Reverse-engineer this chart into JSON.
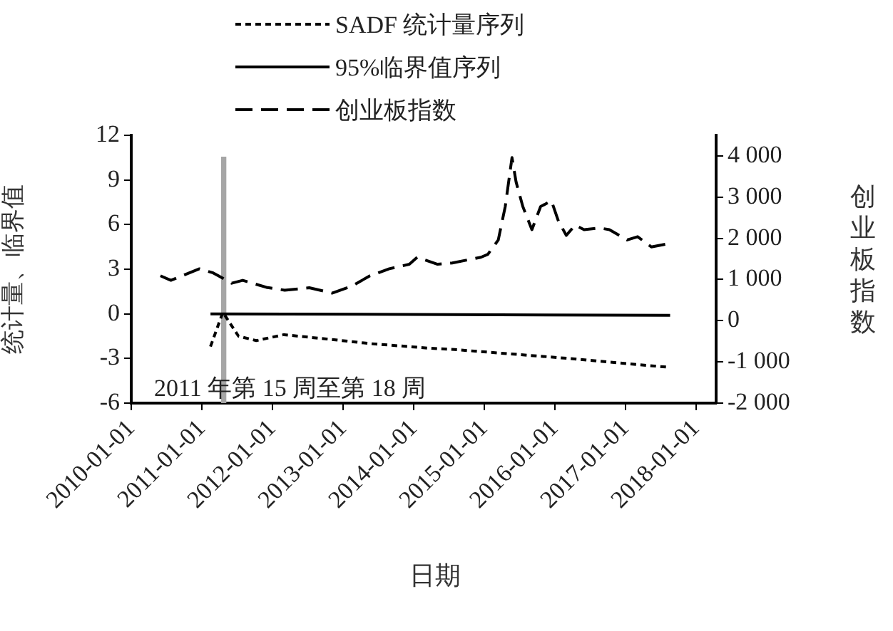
{
  "chart_data": {
    "type": "line",
    "xlabel": "日期",
    "ylabel": "统计量、临界值",
    "y2label": "创业板指数",
    "xlim": [
      "2010-01-01",
      "2018-04-15"
    ],
    "xticks": [
      "2010-01-01",
      "2011-01-01",
      "2012-01-01",
      "2013-01-01",
      "2014-01-01",
      "2015-01-01",
      "2016-01-01",
      "2017-01-01",
      "2018-01-01"
    ],
    "ylim": [
      -6,
      12
    ],
    "yticks": [
      -6,
      -3,
      0,
      3,
      6,
      9,
      12
    ],
    "y2lim": [
      -2000,
      4500
    ],
    "y2ticks": [
      {
        "value": -2000,
        "label": "-2 000"
      },
      {
        "value": -1000,
        "label": "-1 000"
      },
      0,
      {
        "value": 1000,
        "label": "1 000"
      },
      {
        "value": 2000,
        "label": "2 000"
      },
      {
        "value": 3000,
        "label": "3 000"
      },
      {
        "value": 4000,
        "label": "4 000"
      }
    ],
    "grid": false,
    "legend": "top",
    "marker": "none",
    "series": [
      {
        "name": "SADF 统计量序列",
        "color": "#000000",
        "line_style": "dotted",
        "x": [
          "2011-02-15",
          "2011-04-20",
          "2011-07-10",
          "2011-10-10",
          "2012-03-01",
          "2012-10-15",
          "2013-05-20",
          "2014-03-15",
          "2014-08-01",
          "2016-03-15",
          "2017-08-20"
        ],
        "values": [
          -2.2,
          0.1,
          -1.5,
          -1.8,
          -1.4,
          -1.7,
          -2.0,
          -2.3,
          -2.4,
          -3.0,
          -3.6
        ]
      },
      {
        "name": "95%临界值序列",
        "color": "#000000",
        "line_style": "solid",
        "x": [
          "2011-02-15",
          "2017-08-20"
        ],
        "values": [
          0,
          -0.1
        ]
      },
      {
        "name": "创业板指数",
        "color": "#000000",
        "line_style": "dashed",
        "axis": "y2",
        "x": [
          "2010-06-01",
          "2010-07-25",
          "2010-12-20",
          "2011-03-01",
          "2011-06-05",
          "2011-08-01",
          "2011-12-01",
          "2012-03-05",
          "2012-07-10",
          "2012-11-05",
          "2013-02-15",
          "2013-05-20",
          "2013-08-28",
          "2013-12-10",
          "2014-01-20",
          "2014-05-05",
          "2014-07-20",
          "2014-12-15",
          "2015-01-20",
          "2015-03-15",
          "2015-04-20",
          "2015-05-25",
          "2015-06-15",
          "2015-07-20",
          "2015-09-05",
          "2015-10-20",
          "2015-12-15",
          "2016-01-20",
          "2016-03-01",
          "2016-04-15",
          "2016-06-01",
          "2016-08-20",
          "2016-10-10",
          "2017-01-10",
          "2017-03-05",
          "2017-05-15",
          "2017-07-30"
        ],
        "values": [
          1090,
          980,
          1260,
          1160,
          910,
          980,
          810,
          740,
          800,
          670,
          840,
          1090,
          1260,
          1370,
          1540,
          1370,
          1400,
          1540,
          1610,
          1960,
          2770,
          3960,
          3370,
          2770,
          2210,
          2770,
          2910,
          2420,
          2070,
          2320,
          2210,
          2250,
          2210,
          1960,
          2040,
          1790,
          1860
        ]
      }
    ],
    "bands": [
      {
        "axis": "x",
        "from": "2011-04-11",
        "to": "2011-05-08",
        "label": "2011 年第 15 周至第 18 周",
        "color": "#a6a6a6"
      }
    ]
  }
}
